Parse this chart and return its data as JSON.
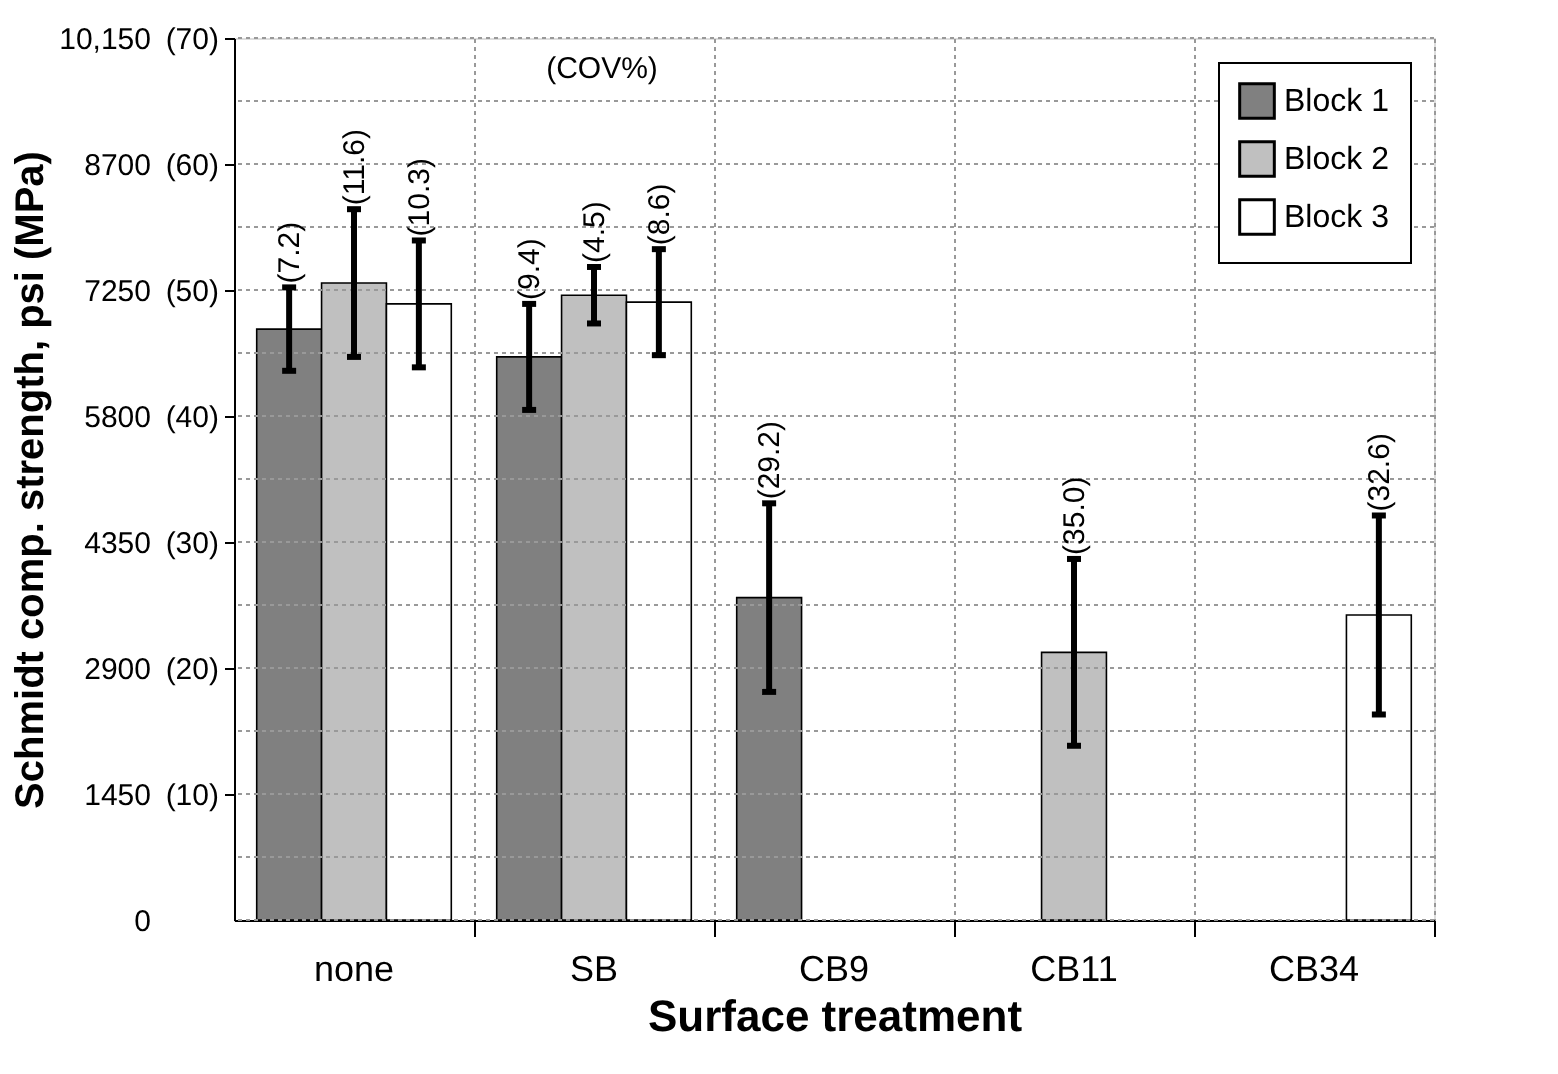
{
  "chart_data": {
    "type": "bar",
    "xlabel": "Surface treatment",
    "ylabel": "Schmidt comp. strength, psi (MPa)",
    "categories": [
      "none",
      "SB",
      "CB9",
      "CB11",
      "CB34"
    ],
    "series": [
      {
        "name": "Block 1",
        "color": "#808080",
        "values": [
          6800,
          6480,
          3710,
          null,
          null
        ],
        "errors": [
          480,
          610,
          1085,
          null,
          null
        ]
      },
      {
        "name": "Block 2",
        "color": "#c0c0c0",
        "values": [
          7330,
          7190,
          null,
          3080,
          null
        ],
        "errors": [
          850,
          325,
          null,
          1075,
          null
        ]
      },
      {
        "name": "Block 3",
        "color": "#ffffff",
        "values": [
          7090,
          7110,
          null,
          null,
          3510
        ],
        "errors": [
          730,
          610,
          null,
          null,
          1145
        ]
      }
    ],
    "ylim": [
      0,
      10150
    ],
    "yticks": [
      0,
      {
        "value": 725,
        "label": null
      },
      1450,
      {
        "value": 2175,
        "label": null
      },
      2900,
      {
        "value": 3625,
        "label": null
      },
      4350,
      {
        "value": 5075,
        "label": null
      },
      5800,
      {
        "value": 6525,
        "label": null
      },
      7250,
      {
        "value": 7975,
        "label": null
      },
      8700,
      {
        "value": 9425,
        "label": null
      },
      {
        "value": 10150,
        "label": "10,150"
      }
    ],
    "y2lim": [
      0,
      70
    ],
    "y2ticks": [
      {
        "value": 10,
        "label": "(10)"
      },
      {
        "value": 20,
        "label": "(20)"
      },
      {
        "value": 30,
        "label": "(30)"
      },
      {
        "value": 40,
        "label": "(40)"
      },
      {
        "value": 50,
        "label": "(50)"
      },
      {
        "value": 60,
        "label": "(60)"
      },
      {
        "value": 70,
        "label": "(70)"
      }
    ],
    "grid": true,
    "legend": "top right",
    "annotations": [
      "(COV%)",
      "(7.2)",
      "(11.6)",
      "(10.3)",
      "(9.4)",
      "(4.5)",
      "(8.6)",
      "(29.2)",
      "(35.0)",
      "(32.6)"
    ]
  }
}
